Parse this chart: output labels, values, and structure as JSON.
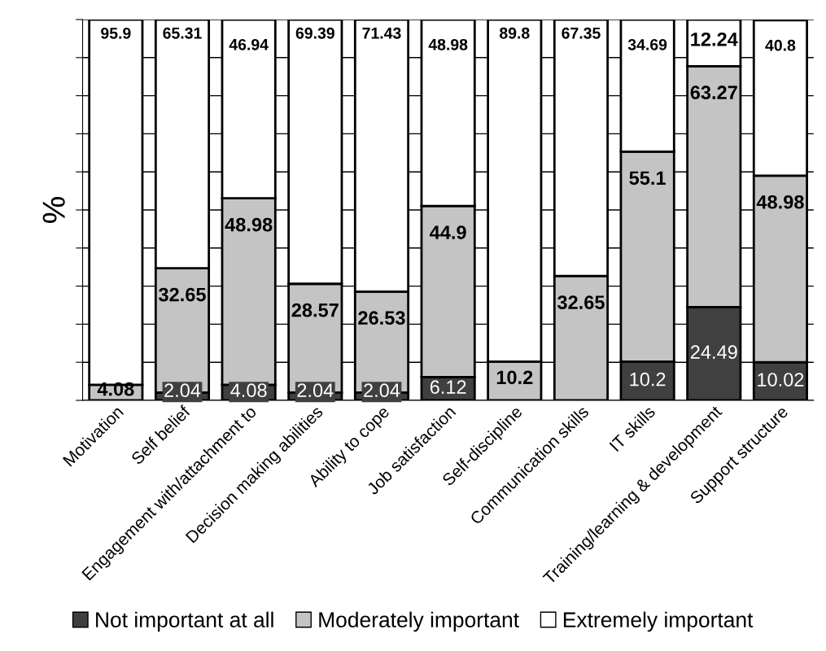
{
  "chart_data": {
    "type": "bar",
    "stacked": true,
    "ylabel": "%",
    "categories": [
      "Motivation",
      "Self belief",
      "Engagement with/attachment to",
      "Decision making abilities",
      "Ability to cope",
      "Job satisfaction",
      "Self-discipline",
      "Communication skills",
      "IT skills",
      "Training/learning & development",
      "Support structure"
    ],
    "series": [
      {
        "name": "Not important at all",
        "color": "#404040",
        "values": [
          0,
          2.04,
          4.08,
          2.04,
          2.04,
          6.12,
          0,
          0,
          10.2,
          24.49,
          10.02
        ],
        "value_labels": [
          null,
          "2.04",
          "4.08",
          "2.04",
          "2.04",
          "6.12",
          null,
          null,
          "10.2",
          "24.49",
          "10.02"
        ]
      },
      {
        "name": "Moderately important",
        "color": "#c4c4c4",
        "values": [
          4.08,
          32.65,
          48.98,
          28.57,
          26.53,
          44.9,
          10.2,
          32.65,
          55.1,
          63.27,
          48.98
        ],
        "value_labels": [
          "4.08",
          "32.65",
          "48.98",
          "28.57",
          "26.53",
          "44.9",
          "10.2",
          "32.65",
          "55.1",
          "63.27",
          "48.98"
        ]
      },
      {
        "name": "Extremely important",
        "color": "#ffffff",
        "values": [
          95.9,
          65.31,
          46.94,
          69.39,
          71.43,
          48.98,
          89.8,
          67.35,
          34.69,
          12.24,
          40.8
        ],
        "value_labels": [
          "95.9",
          "65.31",
          "46.94",
          "69.39",
          "71.43",
          "48.98",
          "89.8",
          "67.35",
          "34.69",
          "12.24",
          "40.8"
        ]
      }
    ],
    "ylim": [
      0,
      100
    ],
    "yticks": [
      {
        "value": 0,
        "label": null
      },
      {
        "value": 10,
        "label": null
      },
      {
        "value": 20,
        "label": null
      },
      {
        "value": 30,
        "label": null
      },
      {
        "value": 40,
        "label": null
      },
      {
        "value": 50,
        "label": null
      },
      {
        "value": 60,
        "label": null
      },
      {
        "value": 70,
        "label": null
      },
      {
        "value": 80,
        "label": null
      },
      {
        "value": 90,
        "label": null
      },
      {
        "value": 100,
        "label": null
      }
    ],
    "tick_labels": "x",
    "grid": "y",
    "legend": "bottom"
  }
}
